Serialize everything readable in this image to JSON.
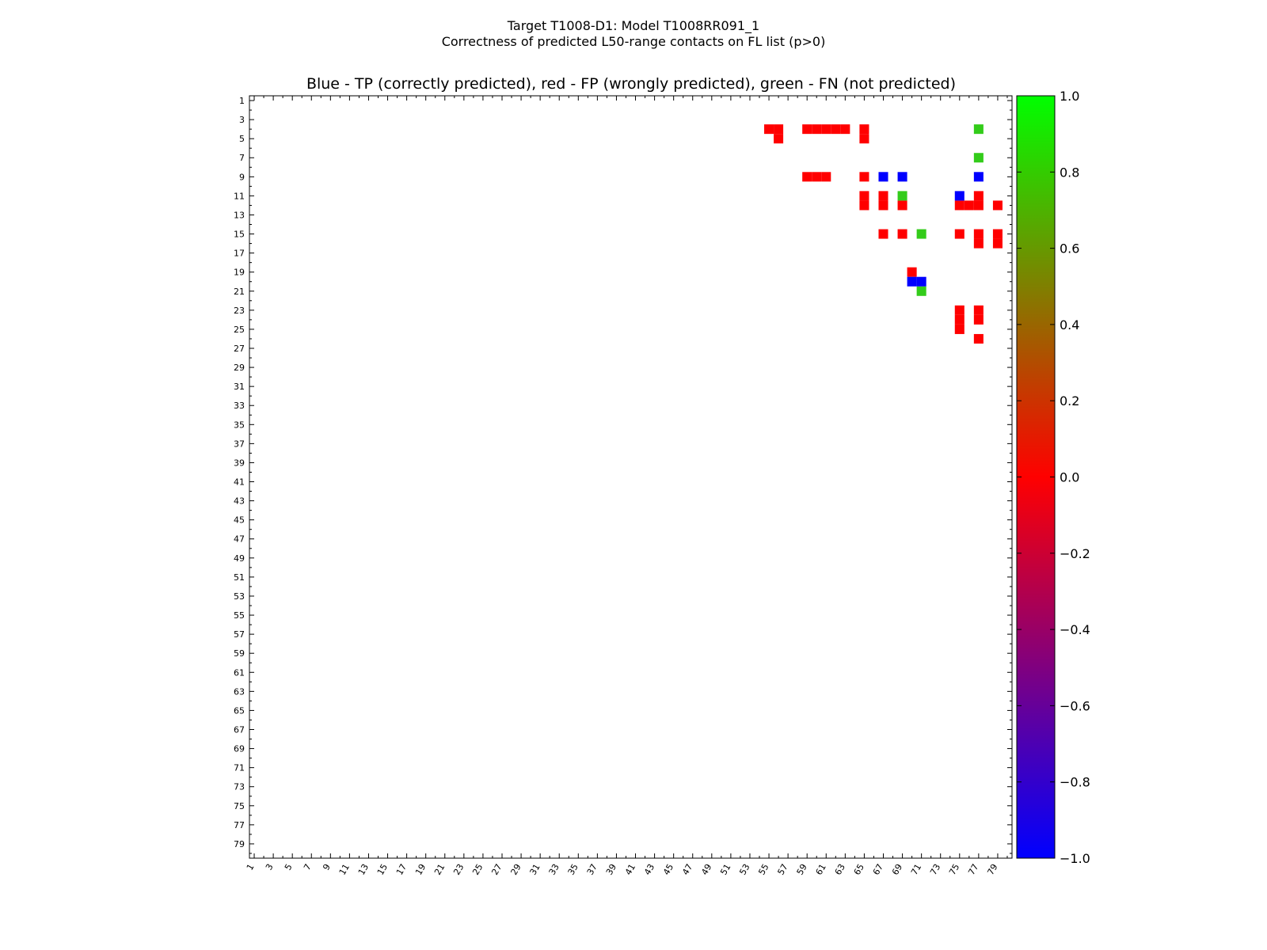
{
  "chart_data": {
    "type": "heatmap",
    "suptitle_lines": [
      "Target T1008-D1: Model T1008RR091_1",
      "Correctness of predicted L50-range contacts on FL list (p>0)"
    ],
    "title": "Blue - TP (correctly predicted), red - FP (wrongly predicted), green - FN (not predicted)",
    "xlim": [
      0.5,
      80.5
    ],
    "ylim": [
      0.5,
      80.5
    ],
    "y_inverted": true,
    "tick_labels": [
      "1",
      "3",
      "5",
      "7",
      "9",
      "11",
      "13",
      "15",
      "17",
      "19",
      "21",
      "23",
      "25",
      "27",
      "29",
      "31",
      "33",
      "35",
      "37",
      "39",
      "41",
      "43",
      "45",
      "47",
      "49",
      "51",
      "53",
      "55",
      "57",
      "59",
      "61",
      "63",
      "65",
      "67",
      "69",
      "71",
      "73",
      "75",
      "77",
      "79"
    ],
    "legend": {
      "TP": "blue",
      "FP": "red",
      "FN": "green"
    },
    "colors": {
      "TP": "#0000ff",
      "FP": "#ff0000",
      "FN": "#33cc1a"
    },
    "colorbar": {
      "range": [
        -1.0,
        1.0
      ],
      "tick_labels": [
        "1.0",
        "0.8",
        "0.6",
        "0.4",
        "0.2",
        "0.0",
        "−0.2",
        "−0.4",
        "−0.6",
        "−0.8",
        "−1.0"
      ],
      "stops": [
        "#00ff00",
        "#ff0000",
        "#0000ff"
      ]
    },
    "cells": {
      "TP": [
        [
          9,
          67
        ],
        [
          9,
          69
        ],
        [
          9,
          77
        ],
        [
          11,
          75
        ],
        [
          20,
          70
        ],
        [
          20,
          71
        ]
      ],
      "FN": [
        [
          4,
          77
        ],
        [
          7,
          77
        ],
        [
          11,
          69
        ],
        [
          15,
          71
        ],
        [
          21,
          71
        ]
      ],
      "FP": [
        [
          4,
          55
        ],
        [
          4,
          56
        ],
        [
          5,
          56
        ],
        [
          4,
          59
        ],
        [
          4,
          60
        ],
        [
          4,
          61
        ],
        [
          4,
          62
        ],
        [
          4,
          63
        ],
        [
          4,
          65
        ],
        [
          5,
          65
        ],
        [
          9,
          59
        ],
        [
          9,
          60
        ],
        [
          9,
          61
        ],
        [
          9,
          65
        ],
        [
          11,
          65
        ],
        [
          12,
          65
        ],
        [
          11,
          67
        ],
        [
          12,
          67
        ],
        [
          12,
          69
        ],
        [
          11,
          77
        ],
        [
          12,
          75
        ],
        [
          12,
          76
        ],
        [
          12,
          77
        ],
        [
          12,
          79
        ],
        [
          15,
          67
        ],
        [
          15,
          69
        ],
        [
          15,
          75
        ],
        [
          15,
          77
        ],
        [
          16,
          77
        ],
        [
          15,
          79
        ],
        [
          16,
          79
        ],
        [
          19,
          70
        ],
        [
          23,
          75
        ],
        [
          24,
          75
        ],
        [
          25,
          75
        ],
        [
          23,
          77
        ],
        [
          24,
          77
        ],
        [
          26,
          77
        ]
      ]
    }
  }
}
